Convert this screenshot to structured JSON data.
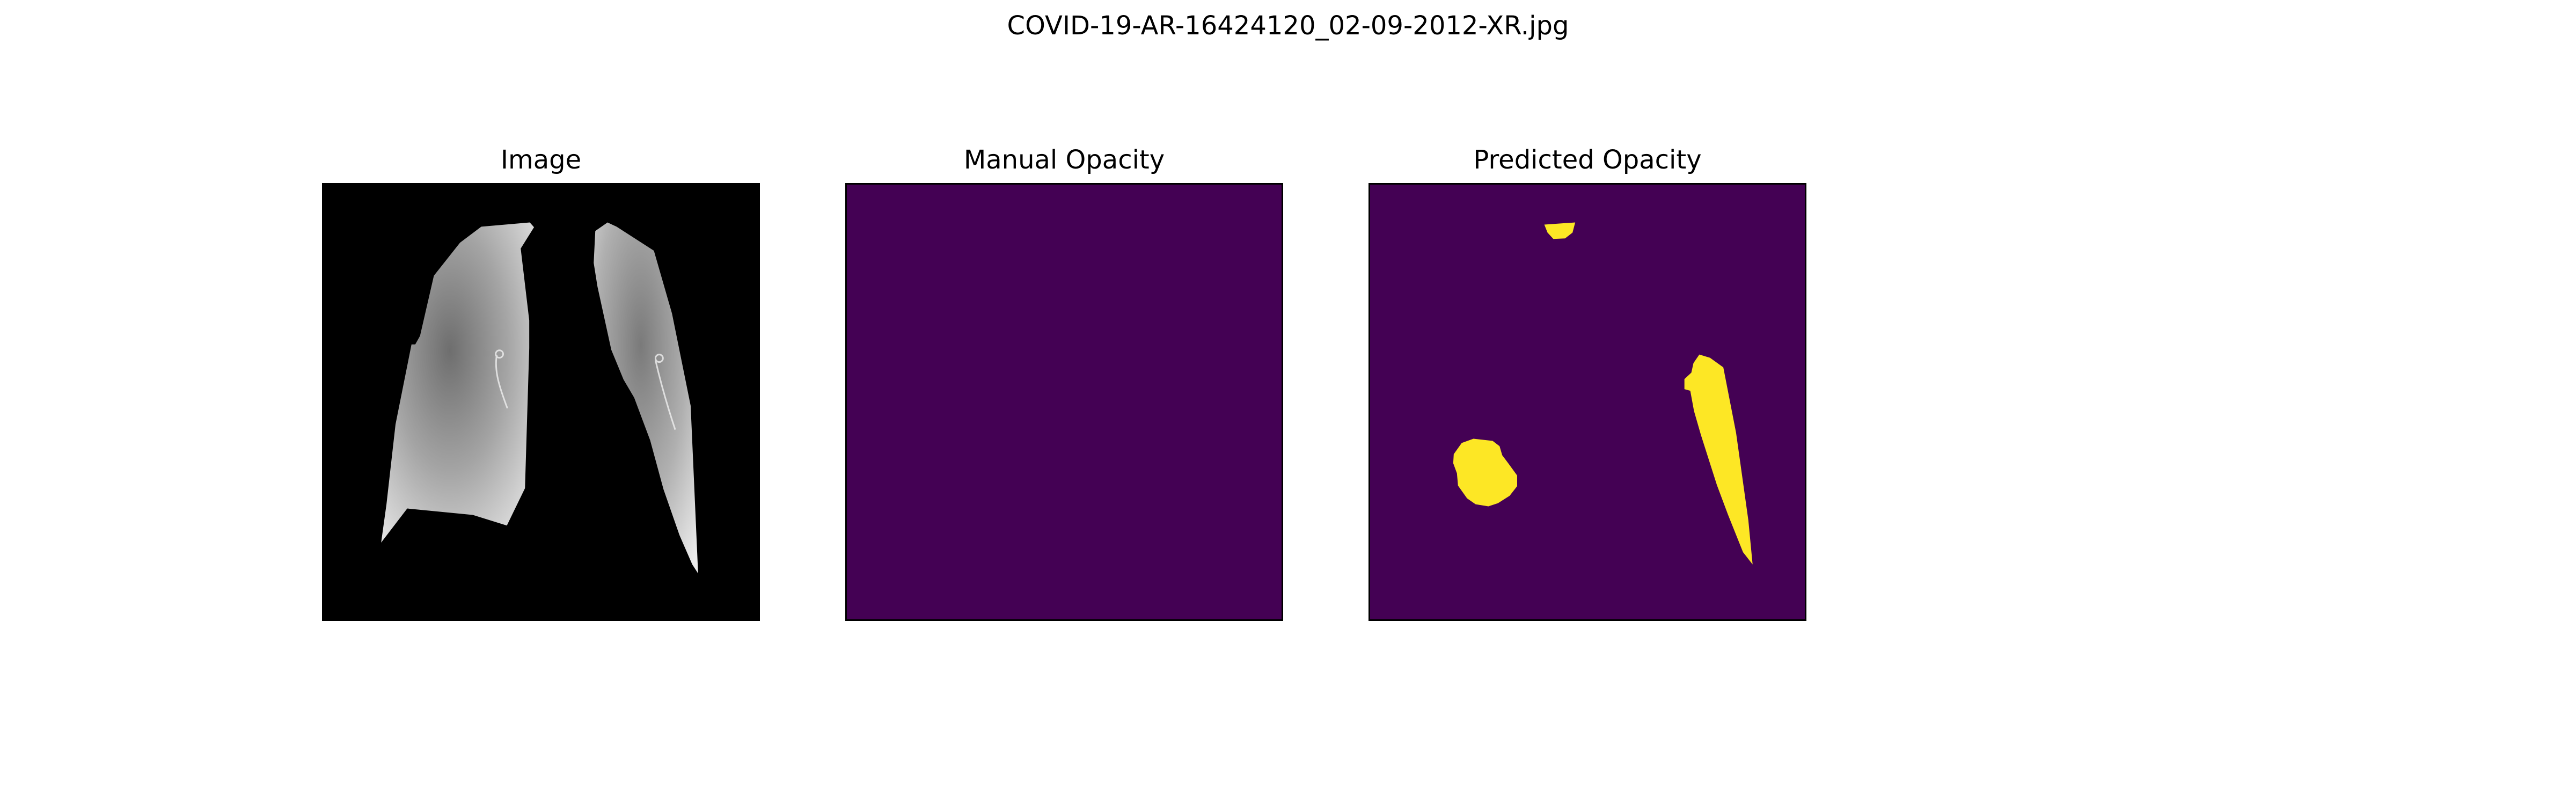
{
  "figure": {
    "suptitle": "COVID-19-AR-16424120_02-09-2012-XR.jpg"
  },
  "panels": [
    {
      "title": "Image"
    },
    {
      "title": "Manual Opacity"
    },
    {
      "title": "Predicted Opacity"
    }
  ],
  "colors": {
    "background": "#ffffff",
    "image_background": "#000000",
    "lung_tone": "#a8a8a8",
    "mask_background": "#440154",
    "mask_foreground": "#fde725"
  }
}
